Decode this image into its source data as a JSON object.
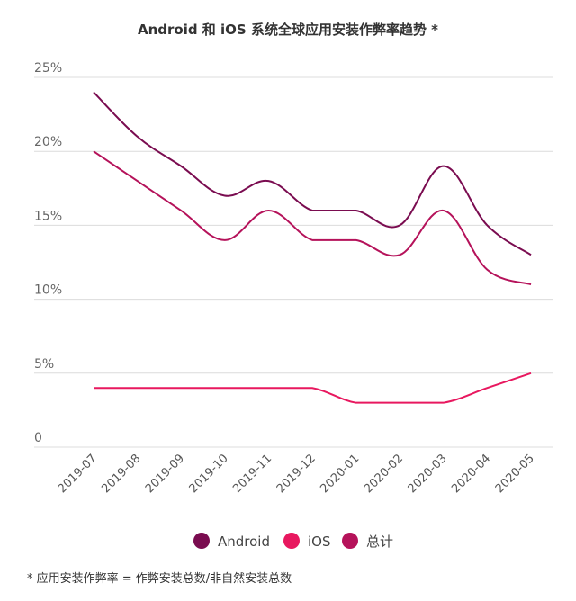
{
  "chart_data": {
    "type": "line",
    "title": "Android 和 iOS 系统全球应用安装作弊率趋势 *",
    "x": [
      "2019-07",
      "2019-08",
      "2019-09",
      "2019-10",
      "2019-11",
      "2019-12",
      "2020-01",
      "2020-02",
      "2020-03",
      "2020-04",
      "2020-05"
    ],
    "y_ticks": [
      "0",
      "5%",
      "10%",
      "15%",
      "20%",
      "25%"
    ],
    "ylim": [
      0,
      25
    ],
    "grid": true,
    "legend_position": "bottom",
    "series": [
      {
        "name": "Android",
        "color": "#7a0c50",
        "values": [
          24,
          21,
          19,
          17,
          18,
          16,
          16,
          15,
          19,
          15,
          13
        ]
      },
      {
        "name": "iOS",
        "color": "#e8185f",
        "values": [
          4,
          4,
          4,
          4,
          4,
          4,
          3,
          3,
          3,
          4,
          5
        ]
      },
      {
        "name": "总计",
        "color": "#b5125a",
        "values": [
          20,
          18,
          16,
          14,
          16,
          14,
          14,
          13,
          16,
          12,
          11
        ]
      }
    ]
  },
  "footnote": "* 应用安装作弊率 = 作弊安装总数/非自然安装总数"
}
